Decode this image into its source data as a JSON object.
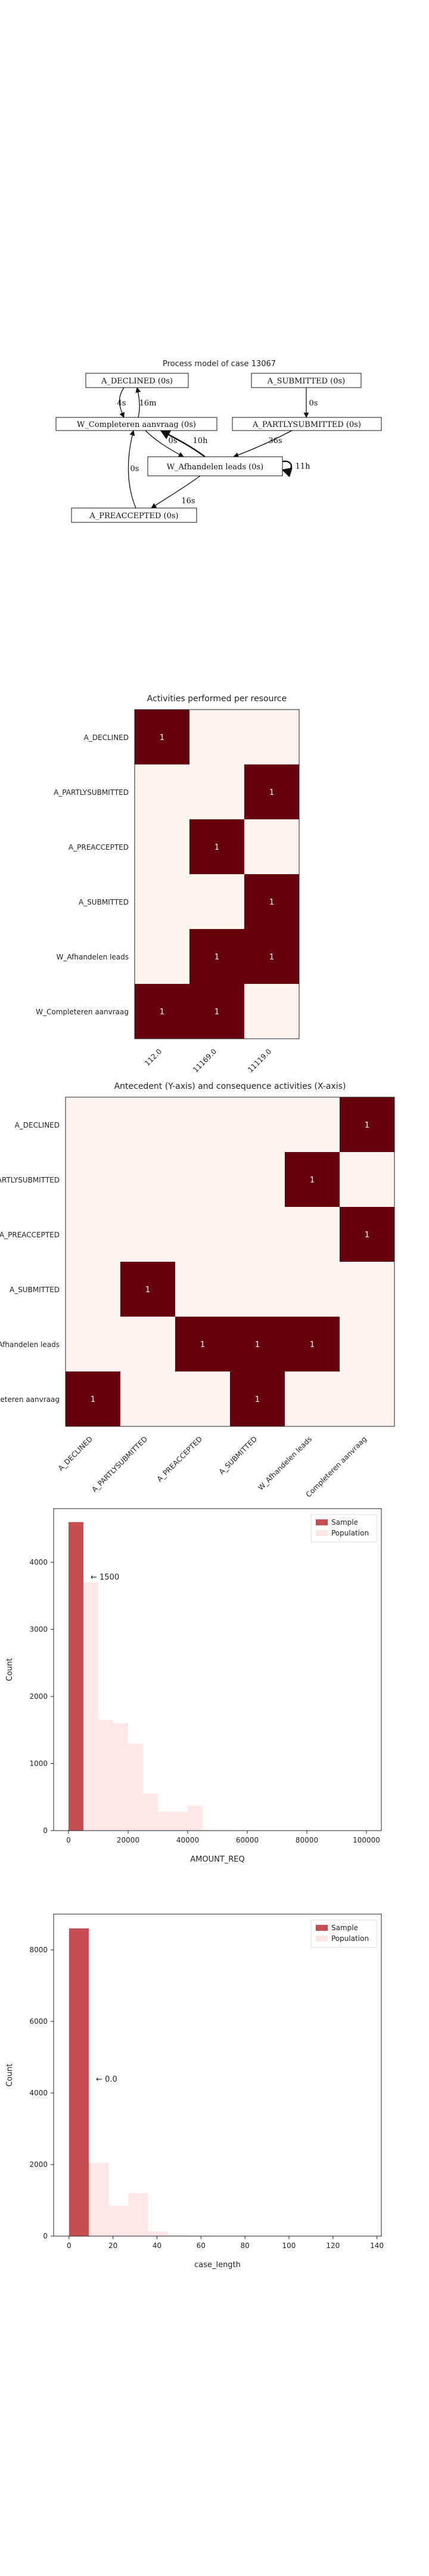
{
  "process_model": {
    "title": "Process model of case 13067",
    "nodes": [
      {
        "id": "A_DECLINED",
        "label": "A_DECLINED (0s)"
      },
      {
        "id": "A_SUBMITTED",
        "label": "A_SUBMITTED (0s)"
      },
      {
        "id": "W_Completeren",
        "label": "W_Completeren aanvraag (0s)"
      },
      {
        "id": "A_PARTLYSUBMITTED",
        "label": "A_PARTLYSUBMITTED (0s)"
      },
      {
        "id": "W_Afhandelen",
        "label": "W_Afhandelen leads (0s)"
      },
      {
        "id": "A_PREACCEPTED",
        "label": "A_PREACCEPTED (0s)"
      }
    ],
    "edges": [
      {
        "from": "A_DECLINED",
        "to": "W_Completeren",
        "label": "4s"
      },
      {
        "from": "W_Completeren",
        "to": "A_DECLINED",
        "label": "16m"
      },
      {
        "from": "A_SUBMITTED",
        "to": "A_PARTLYSUBMITTED",
        "label": "0s"
      },
      {
        "from": "W_Completeren",
        "to": "W_Afhandelen",
        "label": "0s"
      },
      {
        "from": "W_Afhandelen",
        "to": "W_Completeren",
        "label": "10h"
      },
      {
        "from": "A_PARTLYSUBMITTED",
        "to": "W_Afhandelen",
        "label": "36s"
      },
      {
        "from": "W_Afhandelen",
        "to": "W_Afhandelen",
        "label": "11h"
      },
      {
        "from": "W_Afhandelen",
        "to": "A_PREACCEPTED",
        "label": "16s"
      },
      {
        "from": "A_PREACCEPTED",
        "to": "W_Completeren",
        "label": "0s"
      }
    ]
  },
  "chart_data": [
    {
      "type": "heatmap",
      "title": "Activities performed per resource",
      "rows": [
        "A_DECLINED",
        "A_PARTLYSUBMITTED",
        "A_PREACCEPTED",
        "A_SUBMITTED",
        "W_Afhandelen leads",
        "W_Completeren aanvraag"
      ],
      "columns": [
        "112.0",
        "11169.0",
        "11119.0"
      ],
      "values": [
        [
          1,
          0,
          0
        ],
        [
          0,
          0,
          1
        ],
        [
          0,
          1,
          0
        ],
        [
          0,
          0,
          1
        ],
        [
          0,
          1,
          1
        ],
        [
          1,
          1,
          0
        ]
      ]
    },
    {
      "type": "heatmap",
      "title": "Antecedent (Y-axis) and consequence activities (X-axis)",
      "rows": [
        "A_DECLINED",
        "A_PARTLYSUBMITTED",
        "A_PREACCEPTED",
        "A_SUBMITTED",
        "W_Afhandelen leads",
        "W_Completeren aanvraag"
      ],
      "columns": [
        "A_DECLINED",
        "A_PARTLYSUBMITTED",
        "A_PREACCEPTED",
        "A_SUBMITTED",
        "W_Afhandelen leads",
        "W_Completeren aanvraag"
      ],
      "values": [
        [
          0,
          0,
          0,
          0,
          0,
          1
        ],
        [
          0,
          0,
          0,
          0,
          1,
          0
        ],
        [
          0,
          0,
          0,
          0,
          0,
          1
        ],
        [
          0,
          1,
          0,
          0,
          0,
          0
        ],
        [
          0,
          0,
          1,
          1,
          1,
          0
        ],
        [
          1,
          0,
          0,
          1,
          0,
          0
        ]
      ]
    },
    {
      "type": "bar",
      "xlabel": "AMOUNT_REQ",
      "ylabel": "Count",
      "xlim": [
        -5000,
        105000
      ],
      "ylim": [
        0,
        4800
      ],
      "xticks": [
        0,
        20000,
        40000,
        60000,
        80000,
        100000
      ],
      "yticks": [
        0,
        1000,
        2000,
        3000,
        4000
      ],
      "bin_width": 5000,
      "series": [
        {
          "name": "Sample",
          "color": "#c44e52",
          "bins": [
            [
              0,
              4600
            ]
          ]
        },
        {
          "name": "Population",
          "color": "#ffe4e4",
          "bins": [
            [
              0,
              4600
            ],
            [
              5000,
              3700
            ],
            [
              10000,
              1650
            ],
            [
              15000,
              1600
            ],
            [
              20000,
              1300
            ],
            [
              25000,
              550
            ],
            [
              30000,
              280
            ],
            [
              35000,
              280
            ],
            [
              40000,
              370
            ],
            [
              45000,
              10
            ],
            [
              50000,
              10
            ]
          ]
        }
      ],
      "annotation": "← 1500",
      "legend": "top-right"
    },
    {
      "type": "bar",
      "xlabel": "case_length",
      "ylabel": "Count",
      "xlim": [
        -7,
        142
      ],
      "ylim": [
        0,
        9000
      ],
      "xticks": [
        0,
        20,
        40,
        60,
        80,
        100,
        120,
        140
      ],
      "yticks": [
        0,
        2000,
        4000,
        6000,
        8000
      ],
      "bin_width": 9,
      "series": [
        {
          "name": "Sample",
          "color": "#c44e52",
          "bins": [
            [
              0,
              8600
            ]
          ]
        },
        {
          "name": "Population",
          "color": "#ffe4e4",
          "bins": [
            [
              0,
              8600
            ],
            [
              9,
              2050
            ],
            [
              18,
              850
            ],
            [
              27,
              1200
            ],
            [
              36,
              130
            ],
            [
              45,
              40
            ],
            [
              54,
              15
            ],
            [
              63,
              5
            ]
          ]
        }
      ],
      "annotation": "← 0.0",
      "legend": "top-right"
    }
  ]
}
